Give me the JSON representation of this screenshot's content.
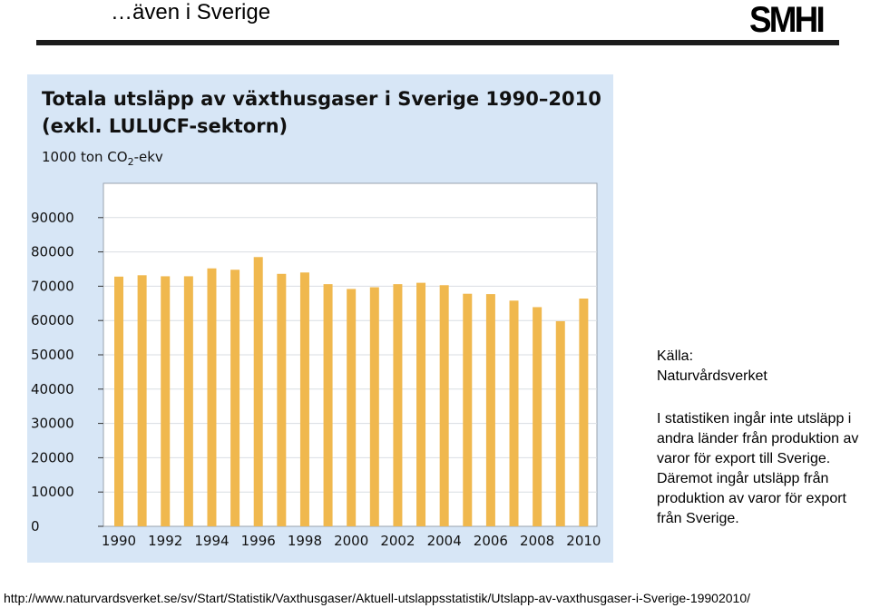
{
  "slide": {
    "title": "…även i Sverige",
    "logo": "SMHI",
    "source": "Källa:\nNaturvårdsverket",
    "note": "I statistiken ingår inte utsläpp i andra länder från produktion av varor för export till Sverige. Däremot ingår utsläpp från produktion av varor för export från Sverige.",
    "url": "http://www.naturvardsverket.se/sv/Start/Statistik/Vaxthusgaser/Aktuell-utslappsstatistik/Utslapp-av-vaxthusgaser-i-Sverige-19902010/"
  },
  "chart_data": {
    "type": "bar",
    "title": "Totala utsläpp av växthusgaser i Sverige 1990–2010 (exkl. LULUCF-sektorn)",
    "ylabel": "1000 ton CO₂-ekv",
    "categories": [
      "1990",
      "1991",
      "1992",
      "1993",
      "1994",
      "1995",
      "1996",
      "1997",
      "1998",
      "1999",
      "2000",
      "2001",
      "2002",
      "2003",
      "2004",
      "2005",
      "2006",
      "2007",
      "2008",
      "2009",
      "2010"
    ],
    "values": [
      72800,
      73200,
      72900,
      72900,
      75200,
      74800,
      78500,
      73600,
      74000,
      70600,
      69200,
      69700,
      70600,
      71000,
      70300,
      67800,
      67700,
      65800,
      63900,
      59800,
      66400
    ],
    "xticks": [
      "1990",
      "1992",
      "1994",
      "1996",
      "1998",
      "2000",
      "2002",
      "2004",
      "2006",
      "2008",
      "2010"
    ],
    "yticks": [
      0,
      10000,
      20000,
      30000,
      40000,
      50000,
      60000,
      70000,
      80000,
      90000
    ],
    "ylim": [
      0,
      100000
    ],
    "bar_color": "#f0b84e",
    "background": "#d7e6f6",
    "grid": true
  }
}
